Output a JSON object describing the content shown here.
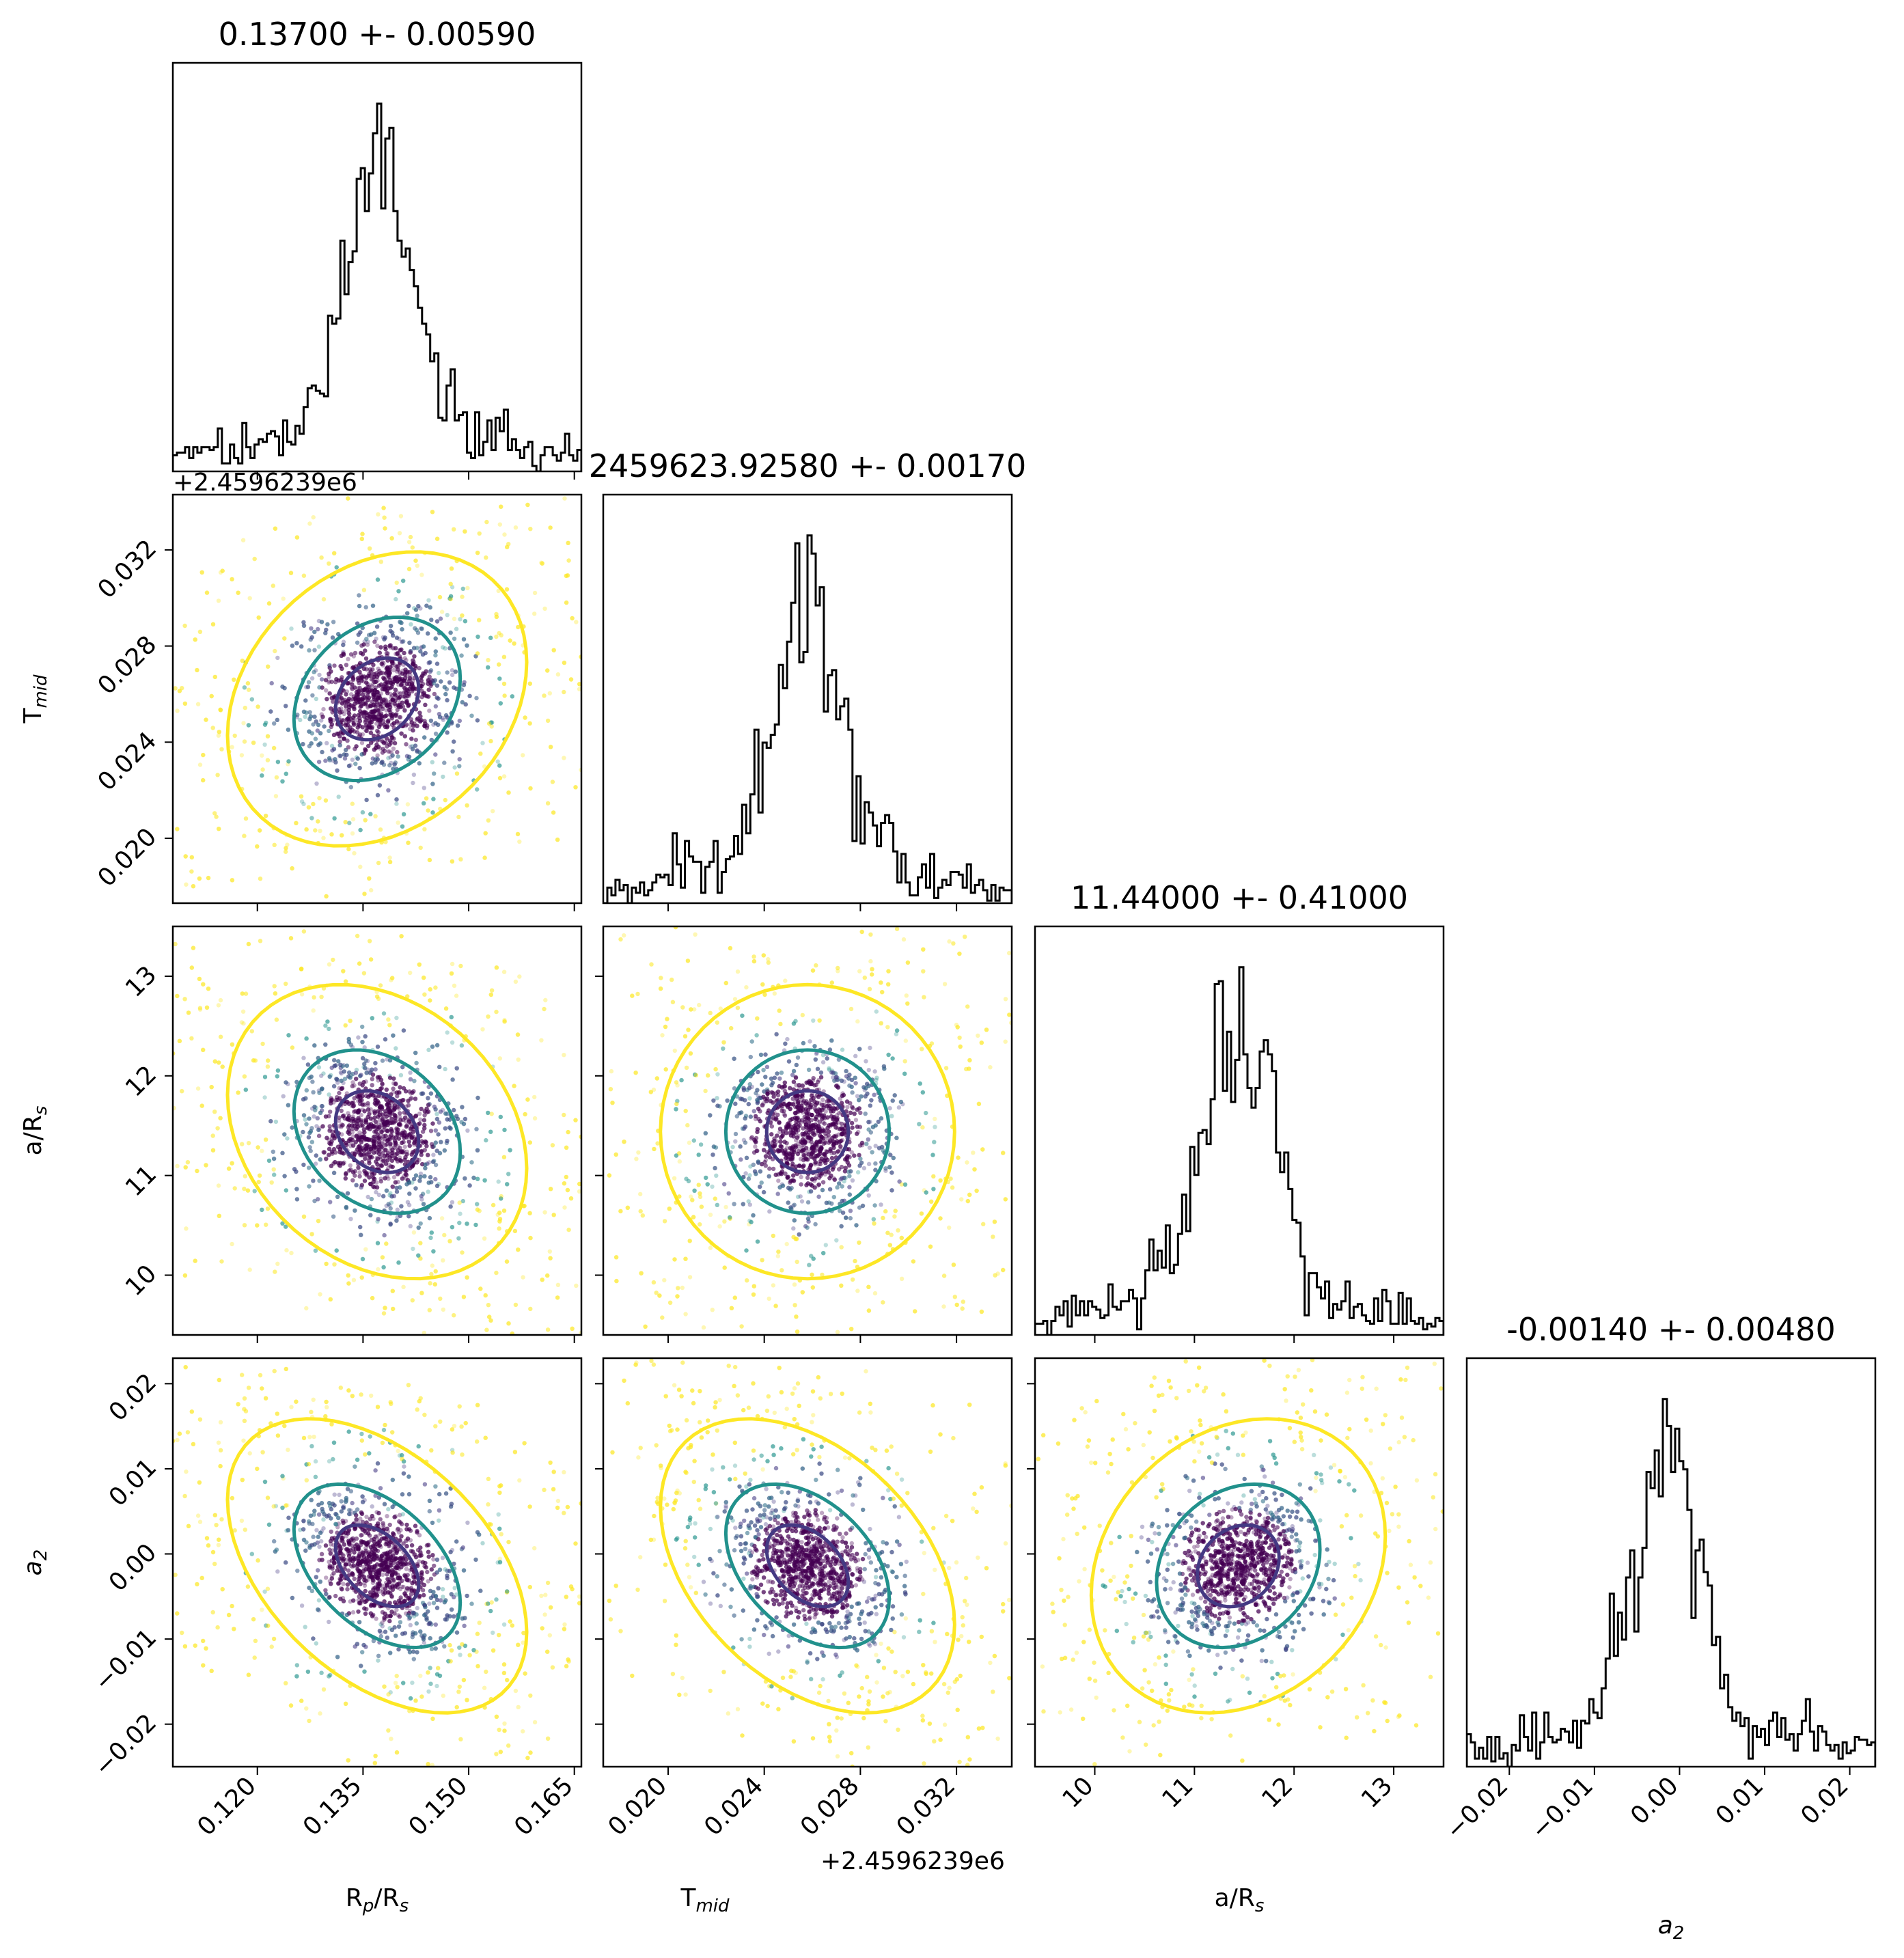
{
  "chart_data": {
    "type": "corner",
    "params": [
      {
        "key": "rp",
        "label_main": "R",
        "label_sub": "p",
        "label_rest": "/R",
        "label_sub2": "s",
        "title": "0.13700 +- 0.00590",
        "median": 0.137,
        "sigma": 0.0059,
        "range": [
          0.108,
          0.166
        ],
        "ticks": [
          "0.120",
          "0.135",
          "0.150",
          "0.165"
        ],
        "tick_values": [
          0.12,
          0.135,
          0.15,
          0.165
        ]
      },
      {
        "key": "tmid",
        "label_main": "T",
        "label_sub": "mid",
        "title": "2459623.92580 +- 0.00170",
        "median": 0.0258,
        "sigma": 0.0017,
        "range": [
          0.0173,
          0.0343
        ],
        "offset_text": "+2.4596239e6",
        "ticks": [
          "0.020",
          "0.024",
          "0.028",
          "0.032"
        ],
        "tick_values": [
          0.02,
          0.024,
          0.028,
          0.032
        ]
      },
      {
        "key": "ars",
        "label_main": "a/R",
        "label_sub": "s",
        "title": "11.44000 +- 0.41000",
        "median": 11.44,
        "sigma": 0.41,
        "range": [
          9.4,
          13.5
        ],
        "ticks": [
          "10",
          "11",
          "12",
          "13"
        ],
        "tick_values": [
          10,
          11,
          12,
          13
        ]
      },
      {
        "key": "a2",
        "label_main": "a",
        "label_sub": "2",
        "label_italic": true,
        "title": "-0.00140 +- 0.00480",
        "median": -0.0014,
        "sigma": 0.0048,
        "range": [
          -0.025,
          0.023
        ],
        "ticks": [
          "−0.02",
          "−0.01",
          "0.00",
          "0.01",
          "0.02"
        ],
        "tick_values": [
          -0.02,
          -0.01,
          0.0,
          0.01,
          0.02
        ]
      }
    ],
    "correlations": {
      "1_0": 0.25,
      "2_0": -0.25,
      "2_1": 0.0,
      "3_0": -0.45,
      "3_1": -0.4,
      "3_2": 0.2
    },
    "contour_levels": [
      "1-sigma",
      "2-sigma",
      "3-sigma"
    ],
    "colors": {
      "inner": "#443983",
      "middle": "#21918c",
      "outer": "#fde725",
      "core": "#440154",
      "hist": "#000000"
    },
    "hist_bins": 100
  }
}
